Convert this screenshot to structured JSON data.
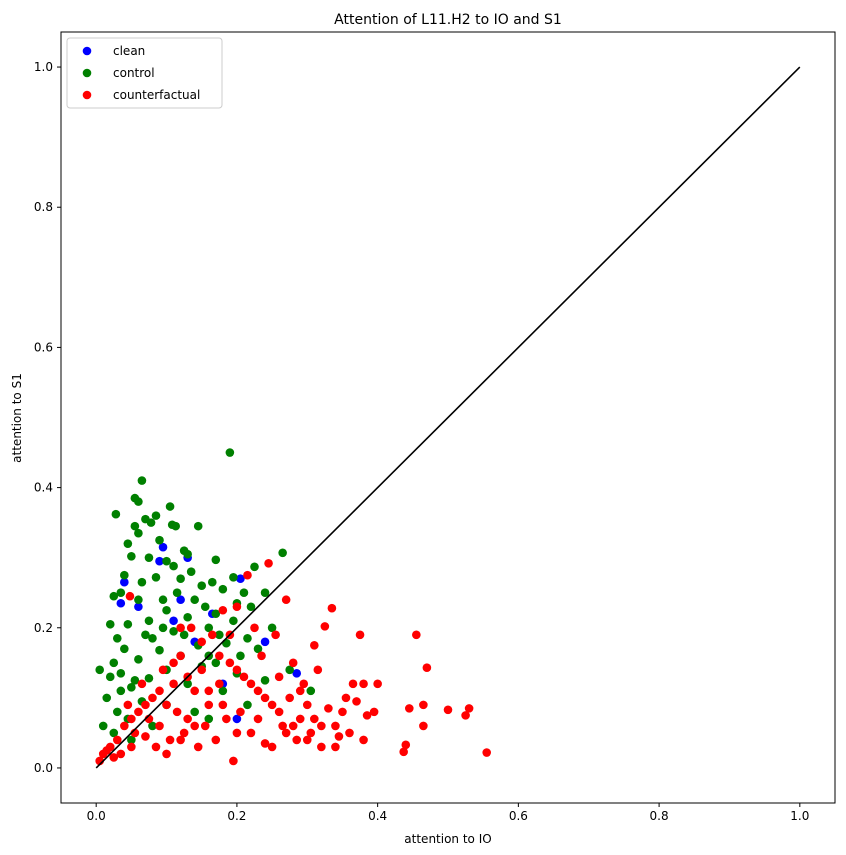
{
  "chart_data": {
    "type": "scatter",
    "title": "Attention of L11.H2 to IO and S1",
    "xlabel": "attention to IO",
    "ylabel": "attention to S1",
    "xlim": [
      -0.05,
      1.05
    ],
    "ylim": [
      -0.05,
      1.05
    ],
    "x_ticks": [
      "0.0",
      "0.2",
      "0.4",
      "0.6",
      "0.8",
      "1.0"
    ],
    "y_ticks": [
      "0.0",
      "0.2",
      "0.4",
      "0.6",
      "0.8",
      "1.0"
    ],
    "legend_position": "top-left",
    "grid": false,
    "reference_line": {
      "x": [
        0,
        1
      ],
      "y": [
        0,
        1
      ],
      "color": "#000000"
    },
    "series": [
      {
        "name": "clean",
        "color": "#0000ff",
        "points": [
          [
            0.095,
            0.315
          ],
          [
            0.04,
            0.265
          ],
          [
            0.09,
            0.295
          ],
          [
            0.13,
            0.3
          ],
          [
            0.205,
            0.27
          ],
          [
            0.285,
            0.135
          ],
          [
            0.24,
            0.18
          ],
          [
            0.165,
            0.22
          ],
          [
            0.12,
            0.24
          ],
          [
            0.06,
            0.23
          ],
          [
            0.035,
            0.235
          ],
          [
            0.2,
            0.07
          ],
          [
            0.18,
            0.12
          ],
          [
            0.14,
            0.18
          ],
          [
            0.11,
            0.21
          ]
        ]
      },
      {
        "name": "control",
        "color": "#008000",
        "points": [
          [
            0.19,
            0.45
          ],
          [
            0.065,
            0.41
          ],
          [
            0.055,
            0.385
          ],
          [
            0.06,
            0.38
          ],
          [
            0.105,
            0.373
          ],
          [
            0.028,
            0.362
          ],
          [
            0.085,
            0.36
          ],
          [
            0.07,
            0.355
          ],
          [
            0.108,
            0.347
          ],
          [
            0.113,
            0.345
          ],
          [
            0.145,
            0.345
          ],
          [
            0.055,
            0.345
          ],
          [
            0.078,
            0.35
          ],
          [
            0.09,
            0.325
          ],
          [
            0.06,
            0.335
          ],
          [
            0.125,
            0.31
          ],
          [
            0.13,
            0.305
          ],
          [
            0.265,
            0.307
          ],
          [
            0.05,
            0.302
          ],
          [
            0.075,
            0.3
          ],
          [
            0.1,
            0.295
          ],
          [
            0.17,
            0.297
          ],
          [
            0.11,
            0.288
          ],
          [
            0.225,
            0.287
          ],
          [
            0.04,
            0.275
          ],
          [
            0.085,
            0.272
          ],
          [
            0.195,
            0.272
          ],
          [
            0.12,
            0.27
          ],
          [
            0.15,
            0.26
          ],
          [
            0.165,
            0.265
          ],
          [
            0.18,
            0.255
          ],
          [
            0.24,
            0.25
          ],
          [
            0.035,
            0.25
          ],
          [
            0.025,
            0.245
          ],
          [
            0.06,
            0.24
          ],
          [
            0.14,
            0.24
          ],
          [
            0.2,
            0.235
          ],
          [
            0.22,
            0.23
          ],
          [
            0.1,
            0.225
          ],
          [
            0.17,
            0.22
          ],
          [
            0.13,
            0.215
          ],
          [
            0.075,
            0.21
          ],
          [
            0.045,
            0.205
          ],
          [
            0.02,
            0.205
          ],
          [
            0.25,
            0.2
          ],
          [
            0.16,
            0.2
          ],
          [
            0.11,
            0.195
          ],
          [
            0.03,
            0.185
          ],
          [
            0.07,
            0.19
          ],
          [
            0.215,
            0.185
          ],
          [
            0.185,
            0.178
          ],
          [
            0.145,
            0.175
          ],
          [
            0.23,
            0.17
          ],
          [
            0.04,
            0.17
          ],
          [
            0.09,
            0.168
          ],
          [
            0.12,
            0.16
          ],
          [
            0.205,
            0.16
          ],
          [
            0.06,
            0.155
          ],
          [
            0.17,
            0.15
          ],
          [
            0.025,
            0.15
          ],
          [
            0.005,
            0.14
          ],
          [
            0.15,
            0.145
          ],
          [
            0.275,
            0.14
          ],
          [
            0.2,
            0.135
          ],
          [
            0.1,
            0.14
          ],
          [
            0.035,
            0.135
          ],
          [
            0.02,
            0.13
          ],
          [
            0.075,
            0.128
          ],
          [
            0.24,
            0.125
          ],
          [
            0.13,
            0.12
          ],
          [
            0.05,
            0.115
          ],
          [
            0.18,
            0.11
          ],
          [
            0.305,
            0.11
          ],
          [
            0.015,
            0.1
          ],
          [
            0.065,
            0.095
          ],
          [
            0.1,
            0.09
          ],
          [
            0.215,
            0.09
          ],
          [
            0.03,
            0.08
          ],
          [
            0.14,
            0.08
          ],
          [
            0.045,
            0.07
          ],
          [
            0.01,
            0.06
          ],
          [
            0.025,
            0.05
          ],
          [
            0.08,
            0.06
          ],
          [
            0.05,
            0.04
          ],
          [
            0.16,
            0.07
          ],
          [
            0.035,
            0.11
          ],
          [
            0.055,
            0.125
          ],
          [
            0.095,
            0.2
          ],
          [
            0.115,
            0.25
          ],
          [
            0.135,
            0.28
          ],
          [
            0.155,
            0.23
          ],
          [
            0.175,
            0.19
          ],
          [
            0.195,
            0.21
          ],
          [
            0.21,
            0.25
          ],
          [
            0.08,
            0.185
          ],
          [
            0.065,
            0.265
          ],
          [
            0.045,
            0.32
          ],
          [
            0.095,
            0.24
          ],
          [
            0.125,
            0.19
          ],
          [
            0.16,
            0.16
          ]
        ]
      },
      {
        "name": "counterfactual",
        "color": "#ff0000",
        "points": [
          [
            0.555,
            0.022
          ],
          [
            0.53,
            0.085
          ],
          [
            0.525,
            0.075
          ],
          [
            0.5,
            0.083
          ],
          [
            0.47,
            0.143
          ],
          [
            0.465,
            0.09
          ],
          [
            0.465,
            0.06
          ],
          [
            0.455,
            0.19
          ],
          [
            0.445,
            0.085
          ],
          [
            0.44,
            0.033
          ],
          [
            0.437,
            0.023
          ],
          [
            0.4,
            0.12
          ],
          [
            0.395,
            0.08
          ],
          [
            0.385,
            0.075
          ],
          [
            0.38,
            0.12
          ],
          [
            0.375,
            0.19
          ],
          [
            0.37,
            0.095
          ],
          [
            0.365,
            0.12
          ],
          [
            0.355,
            0.1
          ],
          [
            0.35,
            0.08
          ],
          [
            0.345,
            0.045
          ],
          [
            0.34,
            0.03
          ],
          [
            0.335,
            0.228
          ],
          [
            0.33,
            0.085
          ],
          [
            0.325,
            0.202
          ],
          [
            0.32,
            0.06
          ],
          [
            0.315,
            0.14
          ],
          [
            0.31,
            0.175
          ],
          [
            0.305,
            0.05
          ],
          [
            0.3,
            0.09
          ],
          [
            0.295,
            0.12
          ],
          [
            0.29,
            0.07
          ],
          [
            0.285,
            0.04
          ],
          [
            0.28,
            0.15
          ],
          [
            0.275,
            0.1
          ],
          [
            0.27,
            0.24
          ],
          [
            0.265,
            0.06
          ],
          [
            0.26,
            0.13
          ],
          [
            0.255,
            0.19
          ],
          [
            0.25,
            0.09
          ],
          [
            0.245,
            0.292
          ],
          [
            0.24,
            0.035
          ],
          [
            0.235,
            0.16
          ],
          [
            0.23,
            0.11
          ],
          [
            0.225,
            0.2
          ],
          [
            0.22,
            0.05
          ],
          [
            0.215,
            0.275
          ],
          [
            0.21,
            0.13
          ],
          [
            0.205,
            0.08
          ],
          [
            0.2,
            0.23
          ],
          [
            0.195,
            0.01
          ],
          [
            0.19,
            0.15
          ],
          [
            0.185,
            0.07
          ],
          [
            0.18,
            0.225
          ],
          [
            0.175,
            0.12
          ],
          [
            0.17,
            0.04
          ],
          [
            0.165,
            0.19
          ],
          [
            0.16,
            0.09
          ],
          [
            0.155,
            0.06
          ],
          [
            0.15,
            0.14
          ],
          [
            0.145,
            0.03
          ],
          [
            0.14,
            0.11
          ],
          [
            0.135,
            0.2
          ],
          [
            0.13,
            0.07
          ],
          [
            0.125,
            0.05
          ],
          [
            0.12,
            0.16
          ],
          [
            0.115,
            0.08
          ],
          [
            0.11,
            0.12
          ],
          [
            0.105,
            0.04
          ],
          [
            0.1,
            0.09
          ],
          [
            0.095,
            0.14
          ],
          [
            0.09,
            0.06
          ],
          [
            0.085,
            0.03
          ],
          [
            0.08,
            0.1
          ],
          [
            0.075,
            0.07
          ],
          [
            0.07,
            0.045
          ],
          [
            0.065,
            0.12
          ],
          [
            0.06,
            0.08
          ],
          [
            0.055,
            0.05
          ],
          [
            0.05,
            0.03
          ],
          [
            0.045,
            0.09
          ],
          [
            0.04,
            0.06
          ],
          [
            0.035,
            0.02
          ],
          [
            0.03,
            0.04
          ],
          [
            0.025,
            0.015
          ],
          [
            0.02,
            0.03
          ],
          [
            0.015,
            0.025
          ],
          [
            0.01,
            0.02
          ],
          [
            0.005,
            0.01
          ],
          [
            0.048,
            0.245
          ],
          [
            0.12,
            0.2
          ],
          [
            0.15,
            0.18
          ],
          [
            0.175,
            0.16
          ],
          [
            0.2,
            0.14
          ],
          [
            0.22,
            0.12
          ],
          [
            0.24,
            0.1
          ],
          [
            0.26,
            0.08
          ],
          [
            0.28,
            0.06
          ],
          [
            0.3,
            0.04
          ],
          [
            0.32,
            0.03
          ],
          [
            0.34,
            0.06
          ],
          [
            0.36,
            0.05
          ],
          [
            0.38,
            0.04
          ],
          [
            0.19,
            0.19
          ],
          [
            0.11,
            0.15
          ],
          [
            0.09,
            0.11
          ],
          [
            0.07,
            0.09
          ],
          [
            0.05,
            0.07
          ],
          [
            0.13,
            0.13
          ],
          [
            0.16,
            0.11
          ],
          [
            0.18,
            0.09
          ],
          [
            0.14,
            0.06
          ],
          [
            0.12,
            0.04
          ],
          [
            0.1,
            0.02
          ],
          [
            0.2,
            0.05
          ],
          [
            0.23,
            0.07
          ],
          [
            0.25,
            0.03
          ],
          [
            0.27,
            0.05
          ],
          [
            0.29,
            0.11
          ],
          [
            0.31,
            0.07
          ]
        ]
      }
    ]
  }
}
